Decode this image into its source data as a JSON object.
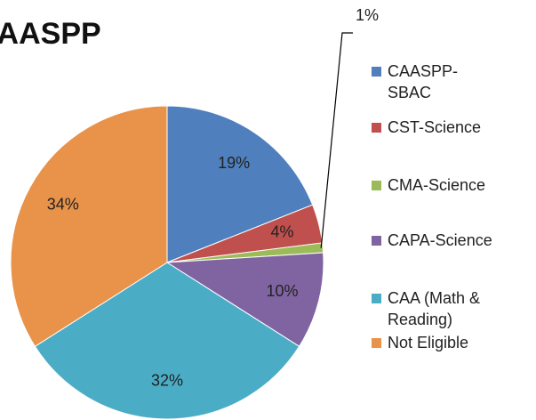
{
  "chart_data": {
    "type": "pie",
    "title": "CAASPP",
    "categories": [
      "CAASPP-SBAC",
      "CST-Science",
      "CMA-Science",
      "CAPA-Science",
      "CAA (Math & Reading)",
      "Not Eligible"
    ],
    "values": [
      19,
      4,
      1,
      10,
      32,
      34
    ],
    "value_labels": [
      "19%",
      "4%",
      "1%",
      "10%",
      "32%",
      "34%"
    ],
    "colors": [
      "#4f7fbd",
      "#c0504d",
      "#9bbb59",
      "#8064a2",
      "#4bacc6",
      "#e8924a"
    ],
    "legend": "right"
  }
}
